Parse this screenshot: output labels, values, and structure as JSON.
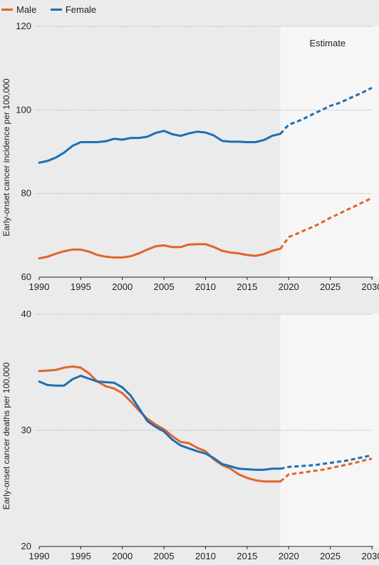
{
  "legend": [
    {
      "label": "Male",
      "color": "#e0652b"
    },
    {
      "label": "Female",
      "color": "#1d6fb3"
    }
  ],
  "estimate_label": "Estimate",
  "chart_data": [
    {
      "type": "line",
      "ylabel": "Early-onset cancer incidence per 100,000",
      "xlim": [
        1990,
        2030
      ],
      "ylim": [
        60,
        120
      ],
      "yticks": [
        60,
        80,
        100,
        120
      ],
      "xticks": [
        1990,
        1995,
        2000,
        2005,
        2010,
        2015,
        2020,
        2025,
        2030
      ],
      "estimate_from": 2019,
      "series": [
        {
          "name": "Male",
          "color": "#e0652b",
          "x": [
            1990,
            1991,
            1992,
            1993,
            1994,
            1995,
            1996,
            1997,
            1998,
            1999,
            2000,
            2001,
            2002,
            2003,
            2004,
            2005,
            2006,
            2007,
            2008,
            2009,
            2010,
            2011,
            2012,
            2013,
            2014,
            2015,
            2016,
            2017,
            2018,
            2019
          ],
          "values": [
            64.5,
            64.9,
            65.6,
            66.2,
            66.6,
            66.6,
            66.1,
            65.3,
            64.9,
            64.7,
            64.7,
            65.0,
            65.7,
            66.6,
            67.4,
            67.6,
            67.2,
            67.2,
            67.8,
            67.9,
            67.9,
            67.2,
            66.3,
            65.9,
            65.7,
            65.3,
            65.1,
            65.5,
            66.3,
            66.8
          ],
          "estimate_x": [
            2019,
            2020,
            2021,
            2022,
            2023,
            2024,
            2025,
            2026,
            2027,
            2028,
            2029,
            2030
          ],
          "estimate_values": [
            66.8,
            69.6,
            70.4,
            71.3,
            72.1,
            73.1,
            74.2,
            75.1,
            76.1,
            77.0,
            78.0,
            78.9
          ]
        },
        {
          "name": "Female",
          "color": "#1d6fb3",
          "x": [
            1990,
            1991,
            1992,
            1993,
            1994,
            1995,
            1996,
            1997,
            1998,
            1999,
            2000,
            2001,
            2002,
            2003,
            2004,
            2005,
            2006,
            2007,
            2008,
            2009,
            2010,
            2011,
            2012,
            2013,
            2014,
            2015,
            2016,
            2017,
            2018,
            2019
          ],
          "values": [
            87.4,
            87.8,
            88.6,
            89.8,
            91.4,
            92.3,
            92.3,
            92.3,
            92.5,
            93.1,
            92.9,
            93.3,
            93.3,
            93.6,
            94.5,
            95.0,
            94.2,
            93.8,
            94.4,
            94.8,
            94.6,
            93.9,
            92.6,
            92.4,
            92.4,
            92.3,
            92.3,
            92.8,
            93.8,
            94.3
          ],
          "estimate_x": [
            2019,
            2020,
            2021,
            2022,
            2023,
            2024,
            2025,
            2026,
            2027,
            2028,
            2029,
            2030
          ],
          "estimate_values": [
            94.3,
            96.5,
            97.2,
            98.1,
            99.1,
            100.0,
            101.0,
            101.6,
            102.5,
            103.4,
            104.3,
            105.3
          ]
        }
      ]
    },
    {
      "type": "line",
      "ylabel": "Early-onset cancer deaths per 100,000",
      "xlim": [
        1990,
        2030
      ],
      "ylim": [
        20,
        40
      ],
      "yticks": [
        20,
        30,
        40
      ],
      "xticks": [
        1990,
        1995,
        2000,
        2005,
        2010,
        2015,
        2020,
        2025,
        2030
      ],
      "estimate_from": 2019,
      "series": [
        {
          "name": "Male",
          "color": "#e0652b",
          "x": [
            1990,
            1991,
            1992,
            1993,
            1994,
            1995,
            1996,
            1997,
            1998,
            1999,
            2000,
            2001,
            2002,
            2003,
            2004,
            2005,
            2006,
            2007,
            2008,
            2009,
            2010,
            2011,
            2012,
            2013,
            2014,
            2015,
            2016,
            2017,
            2018,
            2019
          ],
          "values": [
            35.1,
            35.15,
            35.2,
            35.4,
            35.5,
            35.4,
            34.9,
            34.2,
            33.8,
            33.6,
            33.2,
            32.5,
            31.7,
            31.0,
            30.5,
            30.1,
            29.5,
            29.0,
            28.9,
            28.5,
            28.2,
            27.5,
            27.0,
            26.7,
            26.2,
            25.9,
            25.7,
            25.6,
            25.6,
            25.6
          ],
          "estimate_x": [
            2019,
            2020,
            2021,
            2022,
            2023,
            2024,
            2025,
            2026,
            2027,
            2028,
            2029,
            2030
          ],
          "estimate_values": [
            25.6,
            26.2,
            26.3,
            26.4,
            26.5,
            26.6,
            26.75,
            26.9,
            27.05,
            27.2,
            27.4,
            27.55
          ]
        },
        {
          "name": "Female",
          "color": "#1d6fb3",
          "x": [
            1990,
            1991,
            1992,
            1993,
            1994,
            1995,
            1996,
            1997,
            1998,
            1999,
            2000,
            2001,
            2002,
            2003,
            2004,
            2005,
            2006,
            2007,
            2008,
            2009,
            2010,
            2011,
            2012,
            2013,
            2014,
            2015,
            2016,
            2017,
            2018,
            2019
          ],
          "values": [
            34.2,
            33.9,
            33.85,
            33.85,
            34.4,
            34.7,
            34.45,
            34.2,
            34.15,
            34.1,
            33.7,
            33.0,
            31.9,
            30.8,
            30.3,
            29.9,
            29.2,
            28.7,
            28.45,
            28.2,
            28.0,
            27.6,
            27.1,
            26.9,
            26.7,
            26.65,
            26.6,
            26.6,
            26.7,
            26.7
          ],
          "estimate_x": [
            2019,
            2020,
            2021,
            2022,
            2023,
            2024,
            2025,
            2026,
            2027,
            2028,
            2029,
            2030
          ],
          "estimate_values": [
            26.7,
            26.85,
            26.9,
            26.95,
            27.0,
            27.1,
            27.2,
            27.3,
            27.4,
            27.55,
            27.7,
            27.85
          ]
        }
      ]
    }
  ]
}
